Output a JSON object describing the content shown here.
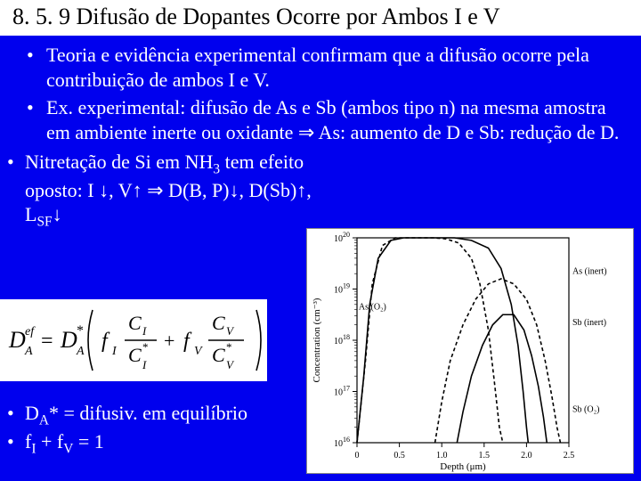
{
  "title": "8. 5. 9 Difusão de Dopantes Ocorre por Ambos I e V",
  "top_bullets": [
    "Teoria e evidência experimental confirmam que a difusão ocorre pela contribuição de ambos I e V.",
    "Ex. experimental: difusão de As e Sb (ambos tipo n) na mesma amostra em ambiente inerte ou oxidante ⇒ As: aumento de D e Sb: redução de D."
  ],
  "left_bullet": "Nitretação de Si em NH₃ tem efeito oposto: I ↓, V↑ ⇒ D(B, P)↓, D(Sb)↑, L_SF↓",
  "bottom_bullets": [
    "D_A* = difusiv. em equilíbrio",
    "f_I + f_V = 1"
  ],
  "formula": {
    "lhs_base": "D",
    "lhs_sub": "A",
    "lhs_sup": "ef",
    "rhs_base": "D",
    "rhs_sub": "A",
    "rhs_sup": "*",
    "term1_coef": "f",
    "term1_coef_sub": "I",
    "term1_num": "C",
    "term1_num_sub": "I",
    "term1_den": "C",
    "term1_den_sub": "I",
    "term1_den_sup": "*",
    "term2_coef": "f",
    "term2_coef_sub": "V",
    "term2_num": "C",
    "term2_num_sub": "V",
    "term2_den": "C",
    "term2_den_sub": "V",
    "term2_den_sup": "*"
  },
  "chart": {
    "type": "line",
    "xlabel": "Depth (μm)",
    "ylabel": "Concentration (cm⁻³)",
    "xlim": [
      0,
      2.5
    ],
    "xticks": [
      0,
      0.5,
      1.0,
      1.5,
      2.0,
      2.5
    ],
    "ylim_exp": [
      16,
      20
    ],
    "yticks_exp": [
      16,
      17,
      18,
      19,
      20
    ],
    "label_fontsize": 11,
    "tick_fontsize": 10,
    "background_color": "#ffffff",
    "axis_color": "#000000",
    "curve_color": "#000000",
    "series": [
      {
        "name": "As (inert)",
        "dash": "4,3",
        "label_xy": [
          2.02,
          19.3
        ],
        "points": [
          [
            0.0,
            16.0
          ],
          [
            0.1,
            17.6
          ],
          [
            0.18,
            19.1
          ],
          [
            0.3,
            19.85
          ],
          [
            0.45,
            20.0
          ],
          [
            0.6,
            20.0
          ],
          [
            0.75,
            20.0
          ],
          [
            0.9,
            20.0
          ],
          [
            1.05,
            19.98
          ],
          [
            1.2,
            19.9
          ],
          [
            1.35,
            19.6
          ],
          [
            1.45,
            19.1
          ],
          [
            1.55,
            18.2
          ],
          [
            1.62,
            17.2
          ],
          [
            1.68,
            16.3
          ],
          [
            1.72,
            16.0
          ]
        ]
      },
      {
        "name": "As (O₂)",
        "dash": "none",
        "label_xy": [
          0.02,
          18.6
        ],
        "points_out": [
          [
            0.0,
            16.0
          ],
          [
            0.08,
            17.3
          ],
          [
            0.15,
            18.7
          ],
          [
            0.25,
            19.6
          ],
          [
            0.4,
            19.95
          ],
          [
            0.55,
            20.0
          ],
          [
            0.75,
            20.0
          ],
          [
            0.95,
            20.0
          ],
          [
            1.15,
            20.0
          ],
          [
            1.35,
            19.95
          ],
          [
            1.55,
            19.8
          ],
          [
            1.7,
            19.4
          ],
          [
            1.82,
            18.7
          ],
          [
            1.9,
            17.9
          ],
          [
            1.96,
            17.0
          ],
          [
            2.0,
            16.3
          ],
          [
            2.02,
            16.0
          ]
        ]
      },
      {
        "name": "Sb (inert)",
        "dash": "4,3",
        "label_xy": [
          2.02,
          18.3
        ],
        "points": [
          [
            0.92,
            16.0
          ],
          [
            1.0,
            16.8
          ],
          [
            1.1,
            17.6
          ],
          [
            1.25,
            18.3
          ],
          [
            1.4,
            18.8
          ],
          [
            1.55,
            19.1
          ],
          [
            1.7,
            19.2
          ],
          [
            1.85,
            19.1
          ],
          [
            2.0,
            18.8
          ],
          [
            2.12,
            18.3
          ],
          [
            2.22,
            17.6
          ],
          [
            2.3,
            16.9
          ],
          [
            2.36,
            16.3
          ],
          [
            2.4,
            16.0
          ]
        ]
      },
      {
        "name": "Sb (O₂)",
        "dash": "none",
        "label_xy": [
          2.02,
          16.6
        ],
        "points_out": [
          [
            1.18,
            16.0
          ],
          [
            1.25,
            16.6
          ],
          [
            1.35,
            17.3
          ],
          [
            1.48,
            17.9
          ],
          [
            1.6,
            18.3
          ],
          [
            1.72,
            18.5
          ],
          [
            1.85,
            18.5
          ],
          [
            1.97,
            18.2
          ],
          [
            2.06,
            17.7
          ],
          [
            2.14,
            17.1
          ],
          [
            2.2,
            16.5
          ],
          [
            2.24,
            16.0
          ]
        ]
      }
    ]
  },
  "colors": {
    "slide_bg": "#0000ee",
    "text_white": "#ffffff",
    "text_black": "#000000"
  }
}
